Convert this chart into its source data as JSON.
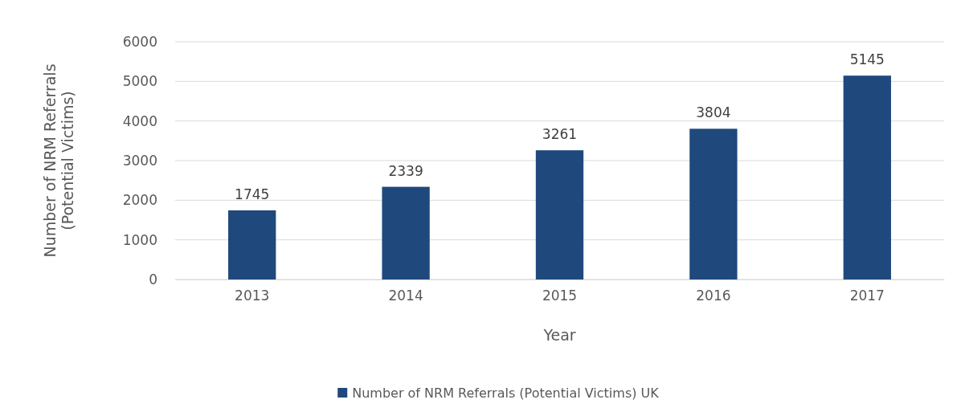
{
  "chart_data": {
    "type": "bar",
    "xlabel": "Year",
    "ylabel": "Number of NRM Referrals (Potential Victims)",
    "categories": [
      "2013",
      "2014",
      "2015",
      "2016",
      "2017"
    ],
    "series": [
      {
        "name": "Number of NRM Referrals (Potential Victims) UK",
        "color": "#1f497d",
        "values": [
          1745,
          2339,
          3261,
          3804,
          5145
        ]
      }
    ],
    "ylim": [
      0,
      6000
    ],
    "yticks": [
      0,
      1000,
      2000,
      3000,
      4000,
      5000,
      6000
    ],
    "grid": "y",
    "legend": "bottom",
    "data_labels": true
  }
}
